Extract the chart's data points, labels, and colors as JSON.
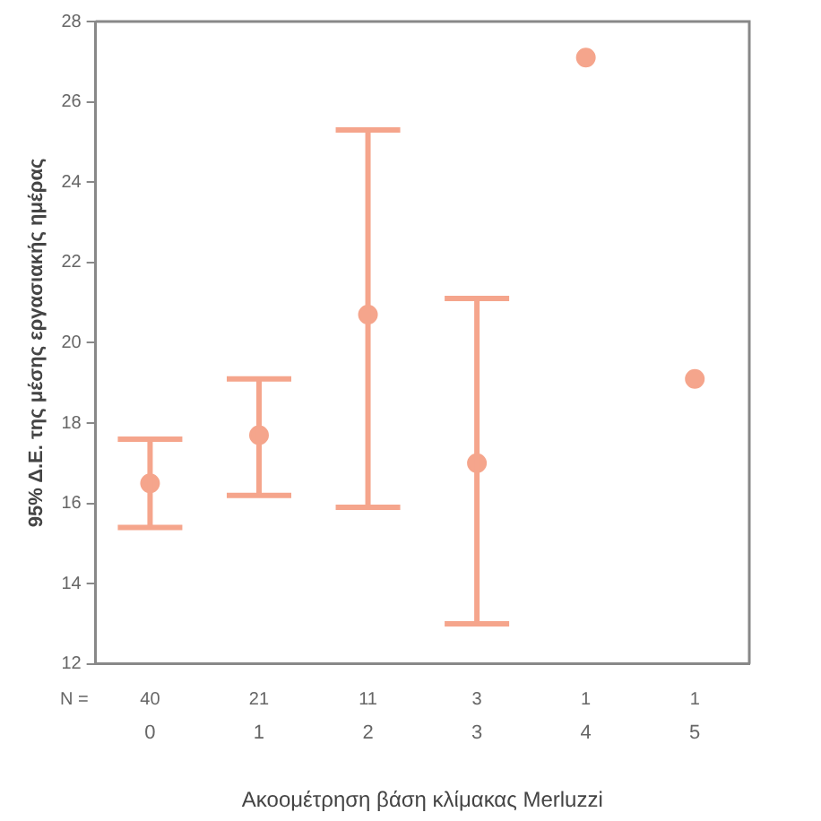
{
  "chart_data": {
    "type": "scatter",
    "xlabel": "Ακοομέτρηση βάση κλίμακας Merluzzi",
    "ylabel": "95% Δ.Ε. της μέσης εργασιακής ημέρας",
    "categories": [
      "0",
      "1",
      "2",
      "3",
      "4",
      "5"
    ],
    "series": [
      {
        "color": "#f5a58c",
        "values": [
          16.5,
          17.7,
          20.7,
          17.0,
          27.1,
          19.1
        ],
        "errors": [
          [
            15.4,
            17.6
          ],
          [
            16.2,
            19.1
          ],
          [
            15.9,
            25.3
          ],
          [
            13.0,
            21.1
          ],
          null,
          null
        ]
      }
    ],
    "ylim": [
      12,
      28
    ],
    "yticks": [
      12,
      14,
      16,
      18,
      20,
      22,
      24,
      26,
      28
    ],
    "grid": false,
    "marker": "circle",
    "annotations": [
      "N =",
      "40",
      "21",
      "11",
      "3",
      "1",
      "1"
    ]
  }
}
